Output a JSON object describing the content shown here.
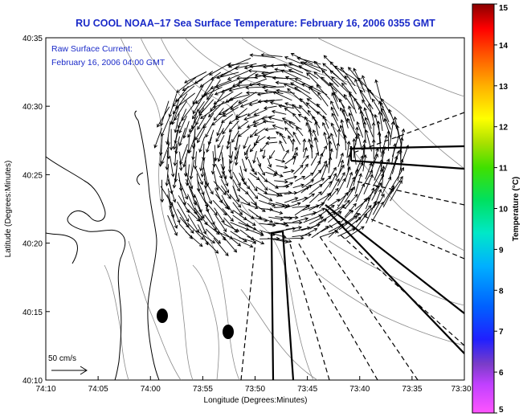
{
  "title": "RU COOL  NOAA–17  Sea Surface Temperature:  February 16, 2006 0355 GMT",
  "current_label": "Raw Surface Current:",
  "current_time": "February 16, 2006 04:00 GMT",
  "xlabel": "Longitude (Degrees:Minutes)",
  "ylabel": "Latitude (Degrees:Minutes)",
  "x_ticks": [
    "74:10",
    "74:05",
    "74:00",
    "73:55",
    "73:50",
    "73:45",
    "73:40",
    "73:35",
    "73:30"
  ],
  "y_ticks": [
    "40:35",
    "40:30",
    "40:25",
    "40:20",
    "40:15",
    "40:10"
  ],
  "scale_label": "50 cm/s",
  "colorbar": {
    "label": "Temperature (°C)",
    "ticks": [
      "15",
      "14",
      "13",
      "12",
      "11",
      "10",
      "9",
      "8",
      "7",
      "6",
      "5"
    ],
    "range": [
      5,
      15
    ]
  },
  "map": {
    "lon_range": [
      -74.1667,
      -73.5
    ],
    "lat_range": [
      40.1667,
      40.5833
    ],
    "vector_field": "counter-clockwise gyre",
    "vector_center": [
      -73.8083,
      40.4667
    ]
  },
  "colors": {
    "title": "#1a2ac8",
    "land_line": "#000000",
    "bathymetry": "#8a8a8a",
    "background": "#ffffff"
  }
}
